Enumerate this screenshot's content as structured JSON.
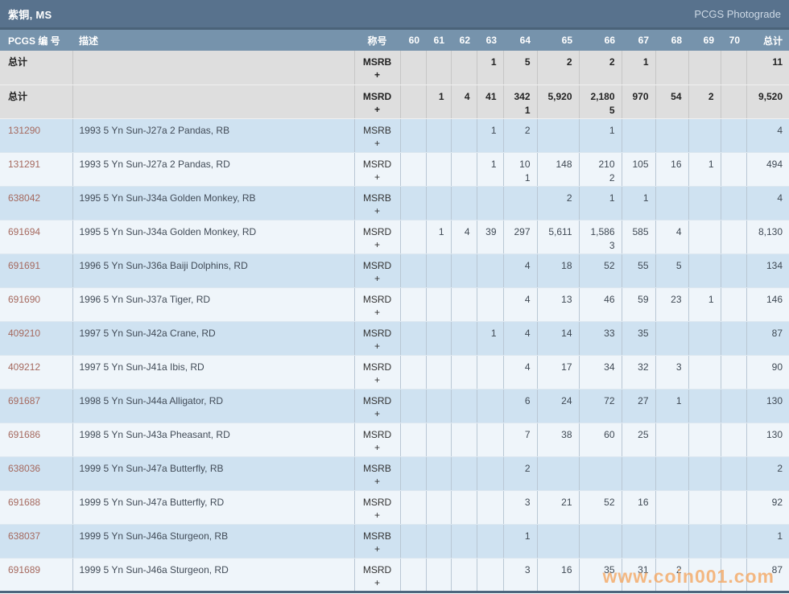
{
  "header": {
    "title": "紫铜, MS",
    "photograde_link": "PCGS Photograde"
  },
  "table": {
    "columns": [
      {
        "key": "pcgs",
        "label": "PCGS 编 号",
        "align": "left"
      },
      {
        "key": "desc",
        "label": "描述",
        "align": "left"
      },
      {
        "key": "designation",
        "label": "称号",
        "align": "center"
      },
      {
        "key": "g60",
        "label": "60",
        "align": "right"
      },
      {
        "key": "g61",
        "label": "61",
        "align": "right"
      },
      {
        "key": "g62",
        "label": "62",
        "align": "right"
      },
      {
        "key": "g63",
        "label": "63",
        "align": "right"
      },
      {
        "key": "g64",
        "label": "64",
        "align": "right"
      },
      {
        "key": "g65",
        "label": "65",
        "align": "right"
      },
      {
        "key": "g66",
        "label": "66",
        "align": "right"
      },
      {
        "key": "g67",
        "label": "67",
        "align": "right"
      },
      {
        "key": "g68",
        "label": "68",
        "align": "right"
      },
      {
        "key": "g69",
        "label": "69",
        "align": "right"
      },
      {
        "key": "g70",
        "label": "70",
        "align": "right"
      },
      {
        "key": "total",
        "label": "总计",
        "align": "right"
      }
    ],
    "grade_keys": [
      "60",
      "61",
      "62",
      "63",
      "64",
      "65",
      "66",
      "67",
      "68",
      "69",
      "70"
    ],
    "rows": [
      {
        "label": "总计",
        "link": false,
        "description": "",
        "designation": "MSRB",
        "designation_plus": "+",
        "grades": [
          "",
          "",
          "",
          "1",
          "5",
          "2",
          "2",
          "1",
          "",
          "",
          ""
        ],
        "grades_plus": [
          "",
          "",
          "",
          "",
          "",
          "",
          "",
          "",
          "",
          "",
          ""
        ],
        "total": "11",
        "shade": "summary"
      },
      {
        "label": "总计",
        "link": false,
        "description": "",
        "designation": "MSRD",
        "designation_plus": "+",
        "grades": [
          "",
          "1",
          "4",
          "41",
          "342",
          "5,920",
          "2,180",
          "970",
          "54",
          "2",
          ""
        ],
        "grades_plus": [
          "",
          "",
          "",
          "",
          "1",
          "",
          "5",
          "",
          "",
          "",
          ""
        ],
        "total": "9,520",
        "shade": "summary"
      },
      {
        "label": "131290",
        "link": true,
        "description": "1993 5 Yn Sun-J27a 2 Pandas, RB",
        "designation": "MSRB",
        "designation_plus": "+",
        "grades": [
          "",
          "",
          "",
          "1",
          "2",
          "",
          "1",
          "",
          "",
          "",
          ""
        ],
        "total": "4",
        "shade": "blue"
      },
      {
        "label": "131291",
        "link": true,
        "description": "1993 5 Yn Sun-J27a 2 Pandas, RD",
        "designation": "MSRD",
        "designation_plus": "+",
        "grades": [
          "",
          "",
          "",
          "1",
          "10",
          "148",
          "210",
          "105",
          "16",
          "1",
          ""
        ],
        "grades_plus": [
          "",
          "",
          "",
          "",
          "1",
          "",
          "2",
          "",
          "",
          "",
          ""
        ],
        "total": "494",
        "shade": "light"
      },
      {
        "label": "638042",
        "link": true,
        "description": "1995 5 Yn Sun-J34a Golden Monkey, RB",
        "designation": "MSRB",
        "designation_plus": "+",
        "grades": [
          "",
          "",
          "",
          "",
          "",
          "2",
          "1",
          "1",
          "",
          "",
          ""
        ],
        "total": "4",
        "shade": "blue"
      },
      {
        "label": "691694",
        "link": true,
        "description": "1995 5 Yn Sun-J34a Golden Monkey, RD",
        "designation": "MSRD",
        "designation_plus": "+",
        "grades": [
          "",
          "1",
          "4",
          "39",
          "297",
          "5,611",
          "1,586",
          "585",
          "4",
          "",
          ""
        ],
        "grades_plus": [
          "",
          "",
          "",
          "",
          "",
          "",
          "3",
          "",
          "",
          "",
          ""
        ],
        "total": "8,130",
        "shade": "light"
      },
      {
        "label": "691691",
        "link": true,
        "description": "1996 5 Yn Sun-J36a Baiji Dolphins, RD",
        "designation": "MSRD",
        "designation_plus": "+",
        "grades": [
          "",
          "",
          "",
          "",
          "4",
          "18",
          "52",
          "55",
          "5",
          "",
          ""
        ],
        "total": "134",
        "shade": "blue"
      },
      {
        "label": "691690",
        "link": true,
        "description": "1996 5 Yn Sun-J37a Tiger, RD",
        "designation": "MSRD",
        "designation_plus": "+",
        "grades": [
          "",
          "",
          "",
          "",
          "4",
          "13",
          "46",
          "59",
          "23",
          "1",
          ""
        ],
        "total": "146",
        "shade": "light"
      },
      {
        "label": "409210",
        "link": true,
        "description": "1997 5 Yn Sun-J42a Crane, RD",
        "designation": "MSRD",
        "designation_plus": "+",
        "grades": [
          "",
          "",
          "",
          "1",
          "4",
          "14",
          "33",
          "35",
          "",
          "",
          ""
        ],
        "total": "87",
        "shade": "blue"
      },
      {
        "label": "409212",
        "link": true,
        "description": "1997 5 Yn Sun-J41a Ibis, RD",
        "designation": "MSRD",
        "designation_plus": "+",
        "grades": [
          "",
          "",
          "",
          "",
          "4",
          "17",
          "34",
          "32",
          "3",
          "",
          ""
        ],
        "total": "90",
        "shade": "light"
      },
      {
        "label": "691687",
        "link": true,
        "description": "1998 5 Yn Sun-J44a Alligator, RD",
        "designation": "MSRD",
        "designation_plus": "+",
        "grades": [
          "",
          "",
          "",
          "",
          "6",
          "24",
          "72",
          "27",
          "1",
          "",
          ""
        ],
        "total": "130",
        "shade": "blue"
      },
      {
        "label": "691686",
        "link": true,
        "description": "1998 5 Yn Sun-J43a Pheasant, RD",
        "designation": "MSRD",
        "designation_plus": "+",
        "grades": [
          "",
          "",
          "",
          "",
          "7",
          "38",
          "60",
          "25",
          "",
          "",
          ""
        ],
        "total": "130",
        "shade": "light"
      },
      {
        "label": "638036",
        "link": true,
        "description": "1999 5 Yn Sun-J47a Butterfly, RB",
        "designation": "MSRB",
        "designation_plus": "+",
        "grades": [
          "",
          "",
          "",
          "",
          "2",
          "",
          "",
          "",
          "",
          "",
          ""
        ],
        "total": "2",
        "shade": "blue"
      },
      {
        "label": "691688",
        "link": true,
        "description": "1999 5 Yn Sun-J47a Butterfly, RD",
        "designation": "MSRD",
        "designation_plus": "+",
        "grades": [
          "",
          "",
          "",
          "",
          "3",
          "21",
          "52",
          "16",
          "",
          "",
          ""
        ],
        "total": "92",
        "shade": "light"
      },
      {
        "label": "638037",
        "link": true,
        "description": "1999 5 Yn Sun-J46a Sturgeon, RB",
        "designation": "MSRB",
        "designation_plus": "+",
        "grades": [
          "",
          "",
          "",
          "",
          "1",
          "",
          "",
          "",
          "",
          "",
          ""
        ],
        "total": "1",
        "shade": "blue"
      },
      {
        "label": "691689",
        "link": true,
        "description": "1999 5 Yn Sun-J46a Sturgeon, RD",
        "designation": "MSRD",
        "designation_plus": "+",
        "grades": [
          "",
          "",
          "",
          "",
          "3",
          "16",
          "35",
          "31",
          "2",
          "",
          ""
        ],
        "total": "87",
        "shade": "light"
      }
    ]
  },
  "watermark": "www.coin001.com",
  "colors": {
    "top_bar": "#58728d",
    "header_row": "#7693ac",
    "summary_row": "#dedede",
    "row_blue": "#cfe2f1",
    "row_light": "#eff5fa",
    "link": "#a5695e",
    "watermark": "#f5a660"
  }
}
